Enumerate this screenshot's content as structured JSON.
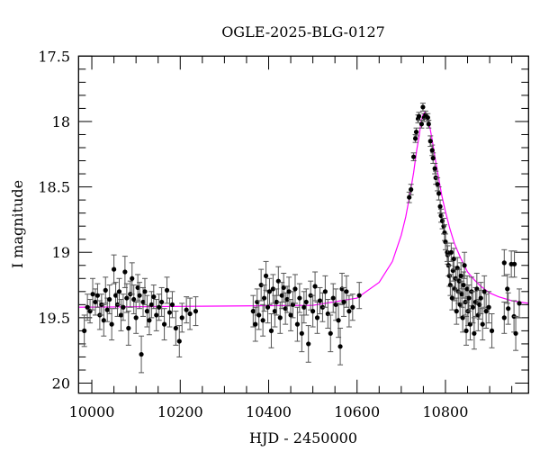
{
  "chart_data": {
    "type": "scatter",
    "title": "OGLE-2025-BLG-0127",
    "xlabel": "HJD - 2450000",
    "ylabel": "I magnitude",
    "xlim": [
      9970,
      10988
    ],
    "ylim": [
      17.5,
      20.077
    ],
    "y_inverted": true,
    "x_ticks": [
      10000,
      10200,
      10400,
      10600,
      10800
    ],
    "x_tick_labels": [
      "10000",
      "10200",
      "10400",
      "10600",
      "10800"
    ],
    "x_minor_step": 50,
    "y_ticks": [
      17.5,
      18,
      18.5,
      19,
      19.5,
      20
    ],
    "y_tick_labels": [
      "17.5",
      "18",
      "18.5",
      "19",
      "19.5",
      "20"
    ],
    "y_minor_step": 0.1,
    "grid": false,
    "colors": {
      "points": "#000000",
      "errorbars": "#555555",
      "model": "#ff00ff"
    },
    "points_format": [
      "HJD-2450000",
      "I_mag",
      "error"
    ],
    "points": [
      [
        9983,
        19.6,
        0.12
      ],
      [
        9990,
        19.42,
        0.1
      ],
      [
        9996,
        19.45,
        0.09
      ],
      [
        10002,
        19.32,
        0.12
      ],
      [
        10008,
        19.38,
        0.1
      ],
      [
        10013,
        19.33,
        0.09
      ],
      [
        10018,
        19.48,
        0.11
      ],
      [
        10022,
        19.4,
        0.08
      ],
      [
        10027,
        19.52,
        0.12
      ],
      [
        10031,
        19.29,
        0.1
      ],
      [
        10035,
        19.44,
        0.09
      ],
      [
        10040,
        19.36,
        0.11
      ],
      [
        10045,
        19.55,
        0.12
      ],
      [
        10050,
        19.13,
        0.11
      ],
      [
        10054,
        19.33,
        0.1
      ],
      [
        10058,
        19.4,
        0.09
      ],
      [
        10062,
        19.3,
        0.1
      ],
      [
        10066,
        19.48,
        0.12
      ],
      [
        10071,
        19.42,
        0.1
      ],
      [
        10075,
        19.15,
        0.12
      ],
      [
        10079,
        19.35,
        0.11
      ],
      [
        10083,
        19.58,
        0.13
      ],
      [
        10087,
        19.32,
        0.1
      ],
      [
        10091,
        19.2,
        0.12
      ],
      [
        10095,
        19.36,
        0.11
      ],
      [
        10100,
        19.5,
        0.12
      ],
      [
        10104,
        19.27,
        0.1
      ],
      [
        10108,
        19.33,
        0.1
      ],
      [
        10112,
        19.78,
        0.14
      ],
      [
        10116,
        19.38,
        0.11
      ],
      [
        10120,
        19.3,
        0.1
      ],
      [
        10125,
        19.45,
        0.12
      ],
      [
        10130,
        19.52,
        0.11
      ],
      [
        10135,
        19.4,
        0.1
      ],
      [
        10140,
        19.34,
        0.09
      ],
      [
        10146,
        19.48,
        0.12
      ],
      [
        10152,
        19.42,
        0.1
      ],
      [
        10158,
        19.38,
        0.11
      ],
      [
        10164,
        19.55,
        0.12
      ],
      [
        10170,
        19.29,
        0.1
      ],
      [
        10176,
        19.46,
        0.11
      ],
      [
        10182,
        19.4,
        0.1
      ],
      [
        10190,
        19.58,
        0.13
      ],
      [
        10198,
        19.68,
        0.12
      ],
      [
        10204,
        19.5,
        0.11
      ],
      [
        10214,
        19.44,
        0.1
      ],
      [
        10222,
        19.47,
        0.12
      ],
      [
        10235,
        19.45,
        0.11
      ],
      [
        10365,
        19.45,
        0.12
      ],
      [
        10370,
        19.55,
        0.13
      ],
      [
        10374,
        19.38,
        0.1
      ],
      [
        10378,
        19.48,
        0.11
      ],
      [
        10383,
        19.25,
        0.12
      ],
      [
        10387,
        19.52,
        0.12
      ],
      [
        10390,
        19.35,
        0.1
      ],
      [
        10394,
        19.18,
        0.11
      ],
      [
        10398,
        19.42,
        0.12
      ],
      [
        10402,
        19.3,
        0.1
      ],
      [
        10406,
        19.6,
        0.13
      ],
      [
        10410,
        19.28,
        0.11
      ],
      [
        10414,
        19.45,
        0.12
      ],
      [
        10418,
        19.38,
        0.1
      ],
      [
        10422,
        19.22,
        0.11
      ],
      [
        10426,
        19.5,
        0.12
      ],
      [
        10430,
        19.33,
        0.1
      ],
      [
        10434,
        19.27,
        0.11
      ],
      [
        10438,
        19.43,
        0.12
      ],
      [
        10442,
        19.36,
        0.1
      ],
      [
        10446,
        19.3,
        0.11
      ],
      [
        10450,
        19.48,
        0.12
      ],
      [
        10455,
        19.4,
        0.1
      ],
      [
        10460,
        19.28,
        0.11
      ],
      [
        10465,
        19.55,
        0.13
      ],
      [
        10470,
        19.35,
        0.11
      ],
      [
        10475,
        19.62,
        0.14
      ],
      [
        10480,
        19.42,
        0.12
      ],
      [
        10485,
        19.38,
        0.1
      ],
      [
        10490,
        19.7,
        0.14
      ],
      [
        10495,
        19.33,
        0.11
      ],
      [
        10500,
        19.45,
        0.12
      ],
      [
        10505,
        19.26,
        0.11
      ],
      [
        10510,
        19.5,
        0.12
      ],
      [
        10516,
        19.37,
        0.1
      ],
      [
        10522,
        19.42,
        0.11
      ],
      [
        10528,
        19.3,
        0.12
      ],
      [
        10534,
        19.47,
        0.11
      ],
      [
        10540,
        19.62,
        0.14
      ],
      [
        10546,
        19.35,
        0.11
      ],
      [
        10552,
        19.4,
        0.12
      ],
      [
        10558,
        19.52,
        0.13
      ],
      [
        10562,
        19.72,
        0.14
      ],
      [
        10566,
        19.28,
        0.12
      ],
      [
        10570,
        19.38,
        0.11
      ],
      [
        10576,
        19.3,
        0.12
      ],
      [
        10582,
        19.45,
        0.12
      ],
      [
        10590,
        19.42,
        0.1
      ],
      [
        10605,
        19.33,
        0.1
      ],
      [
        10718,
        18.58,
        0.04
      ],
      [
        10722,
        18.52,
        0.04
      ],
      [
        10728,
        18.27,
        0.03
      ],
      [
        10732,
        18.13,
        0.03
      ],
      [
        10734,
        18.08,
        0.03
      ],
      [
        10738,
        17.98,
        0.03
      ],
      [
        10740,
        17.96,
        0.03
      ],
      [
        10749,
        17.89,
        0.03
      ],
      [
        10746,
        18.02,
        0.03
      ],
      [
        10752,
        17.97,
        0.03
      ],
      [
        10755,
        17.95,
        0.03
      ],
      [
        10760,
        17.97,
        0.03
      ],
      [
        10762,
        18.02,
        0.03
      ],
      [
        10766,
        18.15,
        0.04
      ],
      [
        10770,
        18.22,
        0.04
      ],
      [
        10772,
        18.28,
        0.04
      ],
      [
        10776,
        18.36,
        0.04
      ],
      [
        10778,
        18.43,
        0.05
      ],
      [
        10782,
        18.48,
        0.05
      ],
      [
        10785,
        18.55,
        0.05
      ],
      [
        10788,
        18.65,
        0.05
      ],
      [
        10790,
        18.72,
        0.05
      ],
      [
        10793,
        18.76,
        0.06
      ],
      [
        10796,
        18.8,
        0.06
      ],
      [
        10798,
        18.85,
        0.06
      ],
      [
        10800,
        18.92,
        0.06
      ],
      [
        10804,
        19.0,
        0.07
      ],
      [
        10805,
        19.02,
        0.07
      ],
      [
        10807,
        19.1,
        0.08
      ],
      [
        10809,
        19.18,
        0.08
      ],
      [
        10811,
        19.25,
        0.08
      ],
      [
        10813,
        19.0,
        0.07
      ],
      [
        10815,
        19.35,
        0.09
      ],
      [
        10817,
        19.14,
        0.08
      ],
      [
        10819,
        19.05,
        0.08
      ],
      [
        10821,
        19.28,
        0.09
      ],
      [
        10823,
        19.2,
        0.09
      ],
      [
        10825,
        19.45,
        0.1
      ],
      [
        10827,
        19.12,
        0.08
      ],
      [
        10829,
        19.3,
        0.09
      ],
      [
        10831,
        19.22,
        0.09
      ],
      [
        10833,
        19.4,
        0.1
      ],
      [
        10835,
        19.18,
        0.1
      ],
      [
        10837,
        19.32,
        0.1
      ],
      [
        10839,
        19.5,
        0.11
      ],
      [
        10841,
        19.25,
        0.1
      ],
      [
        10843,
        19.1,
        0.1
      ],
      [
        10845,
        19.38,
        0.1
      ],
      [
        10847,
        19.6,
        0.11
      ],
      [
        10849,
        19.28,
        0.1
      ],
      [
        10851,
        19.45,
        0.11
      ],
      [
        10853,
        19.35,
        0.1
      ],
      [
        10856,
        19.55,
        0.12
      ],
      [
        10859,
        19.3,
        0.11
      ],
      [
        10862,
        19.42,
        0.12
      ],
      [
        10865,
        19.62,
        0.12
      ],
      [
        10868,
        19.38,
        0.11
      ],
      [
        10871,
        19.28,
        0.12
      ],
      [
        10874,
        19.48,
        0.12
      ],
      [
        10877,
        19.4,
        0.11
      ],
      [
        10880,
        19.35,
        0.12
      ],
      [
        10884,
        19.55,
        0.12
      ],
      [
        10888,
        19.3,
        0.12
      ],
      [
        10892,
        19.45,
        0.13
      ],
      [
        10898,
        19.42,
        0.12
      ],
      [
        10905,
        19.6,
        0.13
      ],
      [
        10933,
        19.08,
        0.1
      ],
      [
        10933,
        19.5,
        0.12
      ],
      [
        10940,
        19.28,
        0.11
      ],
      [
        10942,
        19.43,
        0.12
      ],
      [
        10949,
        19.09,
        0.1
      ],
      [
        10955,
        19.49,
        0.12
      ],
      [
        10956,
        19.09,
        0.1
      ],
      [
        10959,
        19.62,
        0.13
      ],
      [
        10967,
        19.39,
        0.11
      ]
    ],
    "model_curve": [
      [
        9970,
        19.42
      ],
      [
        10500,
        19.405
      ],
      [
        10600,
        19.35
      ],
      [
        10650,
        19.23
      ],
      [
        10680,
        19.07
      ],
      [
        10700,
        18.87
      ],
      [
        10710,
        18.73
      ],
      [
        10720,
        18.55
      ],
      [
        10728,
        18.39
      ],
      [
        10735,
        18.22
      ],
      [
        10740,
        18.12
      ],
      [
        10745,
        18.0
      ],
      [
        10749,
        17.95
      ],
      [
        10753,
        17.93
      ],
      [
        10757,
        17.94
      ],
      [
        10760,
        17.97
      ],
      [
        10765,
        18.05
      ],
      [
        10770,
        18.14
      ],
      [
        10777,
        18.29
      ],
      [
        10785,
        18.44
      ],
      [
        10792,
        18.57
      ],
      [
        10800,
        18.69
      ],
      [
        10810,
        18.82
      ],
      [
        10820,
        18.93
      ],
      [
        10835,
        19.05
      ],
      [
        10850,
        19.15
      ],
      [
        10865,
        19.21
      ],
      [
        10880,
        19.26
      ],
      [
        10900,
        19.31
      ],
      [
        10920,
        19.34
      ],
      [
        10950,
        19.37
      ],
      [
        10988,
        19.39
      ]
    ]
  }
}
